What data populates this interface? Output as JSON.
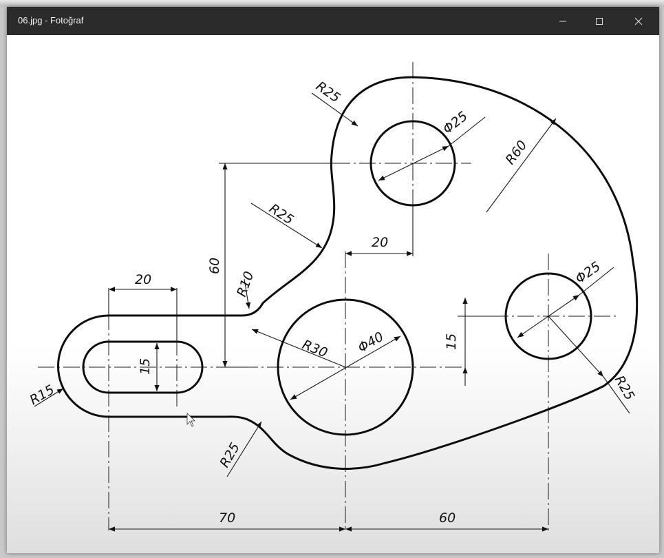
{
  "window": {
    "title": "06.jpg - Fotoğraf",
    "minimize_glyph": "—",
    "maximize_glyph": "□",
    "close_glyph": "✕"
  },
  "drawing": {
    "dimensions": {
      "slot_length": "20",
      "slot_width": "15",
      "r15": "R15",
      "r10": "R10",
      "r25_upper": "R25",
      "r25_left_arc": "R25",
      "r25_bottom": "R25",
      "r25_right": "R25",
      "r30": "R30",
      "dia40": "Φ40",
      "dia25_top": "Φ25",
      "dia25_right": "Φ25",
      "r60": "R60",
      "offset_20": "20",
      "height_60": "60",
      "offset_15": "15",
      "horiz_70": "70",
      "horiz_60": "60"
    }
  }
}
